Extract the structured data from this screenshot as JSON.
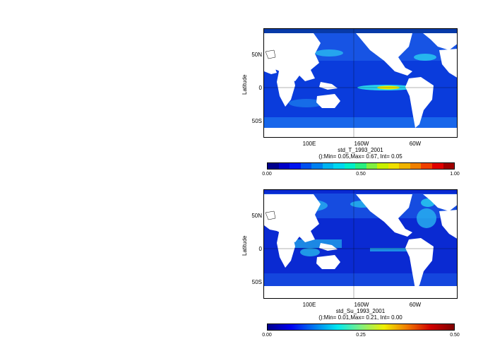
{
  "colors": {
    "land": "#ffffff",
    "ocean_low": "#0a32d2",
    "ocean_mid": "#1e78f0",
    "ocean_high": "#28d2f0",
    "hot": "#f0f000"
  },
  "panels": [
    {
      "ylabel": "Latitude",
      "yticks": [
        "50N",
        "0",
        "50S"
      ],
      "xticks": [
        "100E",
        "160W",
        "60W"
      ],
      "title_line1": "std_T_1993_2001",
      "title_line2": "():Min= 0.05,Max= 0.67, Int= 0.05",
      "colorbar": {
        "labels": [
          "0.00",
          "0.50",
          "1.00"
        ],
        "colors": [
          "#00008c",
          "#0000c8",
          "#0014f0",
          "#0050f0",
          "#0080f0",
          "#00b4f0",
          "#00d8f0",
          "#00f0c8",
          "#28f080",
          "#80f040",
          "#c8f000",
          "#f0e000",
          "#f0b400",
          "#f08000",
          "#f04000",
          "#e00000",
          "#a00000"
        ]
      }
    },
    {
      "ylabel": "Latitude",
      "yticks": [
        "50N",
        "0",
        "50S"
      ],
      "xticks": [
        "100E",
        "160W",
        "60W"
      ],
      "title_line1": "std_Su_1993_2001",
      "title_line2": "():Min= 0.01,Max= 0.21, Int= 0.00",
      "colorbar": {
        "labels": [
          "0.00",
          "0.25",
          "0.50"
        ],
        "gradient": [
          "#00008c",
          "#0000f0",
          "#0078f0",
          "#00e8f0",
          "#80f080",
          "#f0f000",
          "#f07800",
          "#d00000",
          "#800000"
        ]
      }
    }
  ]
}
